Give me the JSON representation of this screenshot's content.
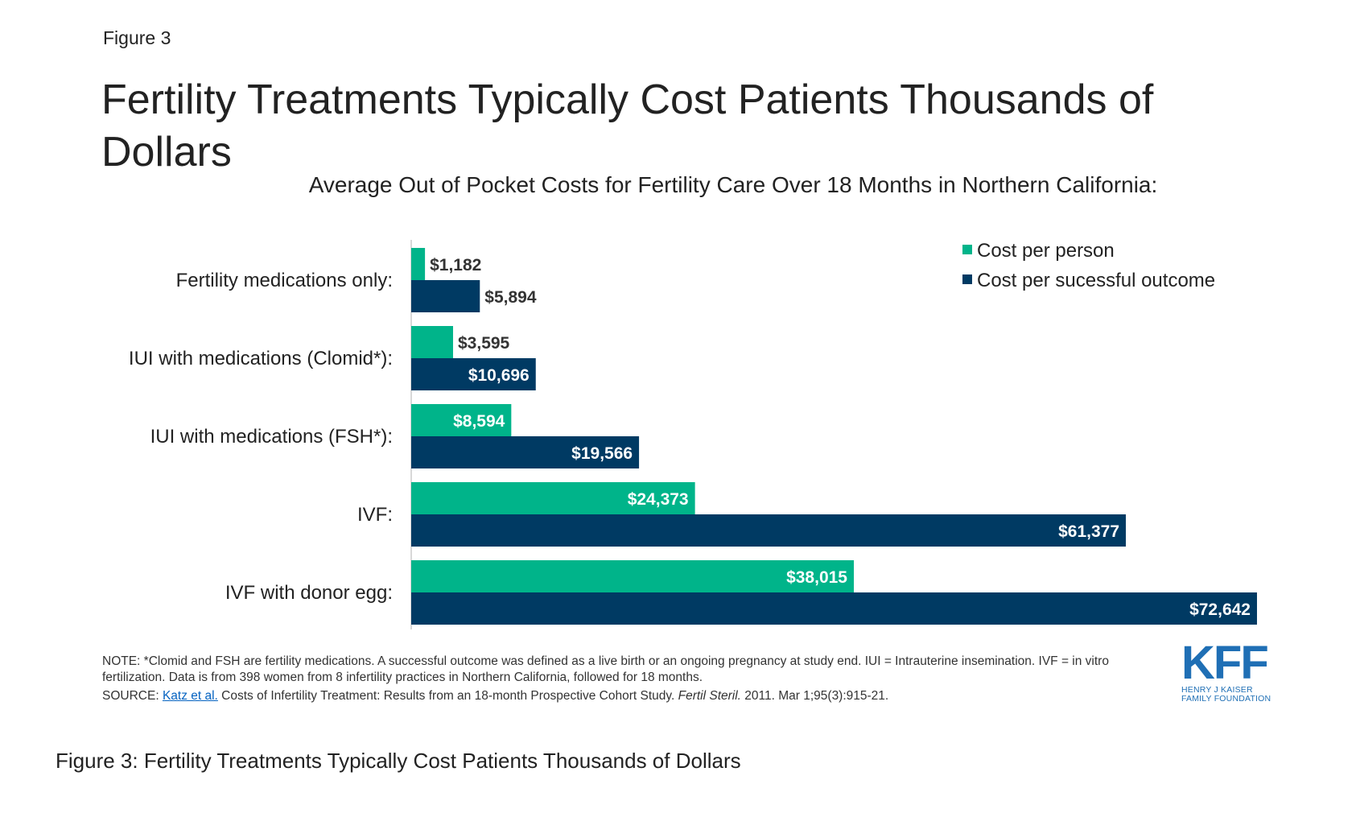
{
  "figure_label": "Figure 3",
  "title": "Fertility Treatments Typically Cost Patients Thousands of Dollars",
  "colors": {
    "per_person": "#00b48a",
    "per_outcome": "#003a63",
    "axis": "#cccccc"
  },
  "chart_data": {
    "type": "bar",
    "orientation": "horizontal",
    "title": "Fertility Treatments Typically Cost Patients Thousands of Dollars",
    "subtitle": "Average Out of Pocket Costs for Fertility Care Over 18 Months in Northern California:",
    "categories": [
      "Fertility medications only:",
      "IUI with medications (Clomid*):",
      "IUI with medications (FSH*):",
      "IVF:",
      "IVF with donor egg:"
    ],
    "series": [
      {
        "name": "Cost per person",
        "values": [
          1182,
          3595,
          8594,
          24373,
          38015
        ],
        "labels": [
          "$1,182",
          "$3,595",
          "$8,594",
          "$24,373",
          "$38,015"
        ]
      },
      {
        "name": "Cost per sucessful outcome",
        "values": [
          5894,
          10696,
          19566,
          61377,
          72642
        ],
        "labels": [
          "$5,894",
          "$10,696",
          "$19,566",
          "$61,377",
          "$72,642"
        ]
      }
    ],
    "xlim": [
      0,
      72642
    ],
    "legend_position": "top-right",
    "grid": false
  },
  "note": "NOTE: *Clomid and FSH are fertility medications. A successful outcome was defined as a live birth or an ongoing pregnancy at study end. IUI = Intrauterine insemination. IVF = in vitro fertilization. Data is from 398 women from 8 infertility practices in Northern California, followed for 18 months.",
  "source": {
    "prefix": "SOURCE: ",
    "link_text": "Katz et al.",
    "mid": " Costs of Infertility Treatment: Results from an 18-month Prospective Cohort Study. ",
    "journal": "Fertil Steril.",
    "suffix": " 2011. Mar 1;95(3):915-21."
  },
  "logo": {
    "mark": "KFF",
    "line1": "HENRY J KAISER",
    "line2": "FAMILY FOUNDATION"
  },
  "caption": "Figure 3: Fertility Treatments Typically Cost Patients Thousands of Dollars"
}
